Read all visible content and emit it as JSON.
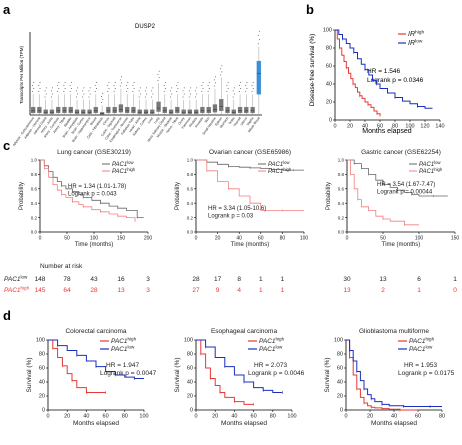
{
  "figure": {
    "colors": {
      "red": "#e53935",
      "blue": "#1a2fbf",
      "gray": "#555555",
      "lightred": "#f08080",
      "boxblue": "#3b8fd6"
    },
    "panel_a": {
      "letter": "a",
      "title": "DUSP2",
      "ylabel": "Transcripts Per Million (TPM)",
      "tissues": [
        "Adipose - Subcutaneous",
        "Adipose - Visceral",
        "Adrenal Gland",
        "Artery - Aorta",
        "Artery - Coronary",
        "Artery - Tibial",
        "Bladder",
        "Brain - Amygdala",
        "Brain - Cortex",
        "Brain - Hippocampus",
        "Breast",
        "Cells - Fibroblasts",
        "Cervix",
        "Colon - Sigmoid",
        "Colon - Transverse",
        "Esophagus - Mucosa",
        "Fallopian Tube",
        "Heart - Atrial",
        "Kidney - Cortex",
        "Liver",
        "Lung",
        "Minor Salivary Gland",
        "Muscle - Skeletal",
        "Nerve - Tibial",
        "Ovary",
        "Pancreas",
        "Pituitary",
        "Prostate",
        "Skin",
        "Small Intestine",
        "Spleen",
        "Stomach",
        "Testis",
        "Thyroid",
        "Uterus",
        "Vagina",
        "Whole Blood"
      ]
    },
    "panel_b": {
      "letter": "b",
      "ylabel": "Disease-free survival (%)",
      "xlabel": "Months elapsed",
      "xticks": [
        "0",
        "20",
        "40",
        "60",
        "80",
        "100",
        "120",
        "140"
      ],
      "yticks": [
        "0",
        "20",
        "40",
        "60",
        "80",
        "100"
      ],
      "legend": [
        {
          "label": "IR",
          "sup": "high",
          "color": "red"
        },
        {
          "label": "IR",
          "sup": "low",
          "color": "blue"
        }
      ],
      "hr": "HR = 1.546",
      "logrank": "Logrank p = 0.0346"
    },
    "panel_c": {
      "letter": "c",
      "ylabel": "Probability",
      "xlabel": "Time (months)",
      "risk_header": "Number at risk",
      "plots": [
        {
          "title": "Lung cancer (GSE30219)",
          "xticks": [
            "0",
            "50",
            "100",
            "150",
            "200"
          ],
          "legend": [
            {
              "label": "PAC1",
              "sup": "low"
            },
            {
              "label": "PAC1",
              "sup": "high"
            }
          ],
          "hr": "HR = 1.34 (1.01-1.78)",
          "logrank": "Logrank p = 0.043",
          "risk_low": [
            "148",
            "78",
            "43",
            "16",
            "3"
          ],
          "risk_high": [
            "145",
            "64",
            "28",
            "13",
            "3"
          ]
        },
        {
          "title": "Ovarian cancer (GSE65986)",
          "xticks": [
            "0",
            "20",
            "40",
            "60",
            "80",
            "100"
          ],
          "legend": [
            {
              "label": "PAC1",
              "sup": "low"
            },
            {
              "label": "PAC1",
              "sup": "high"
            }
          ],
          "hr": "HR = 3.34 (1.05-10.6)",
          "logrank": "Logrank p = 0.03",
          "risk_low": [
            "28",
            "17",
            "8",
            "1",
            "1"
          ],
          "risk_high": [
            "27",
            "9",
            "4",
            "1",
            "1"
          ]
        },
        {
          "title": "Gastric cancer (GSE62254)",
          "xticks": [
            "0",
            "50",
            "100",
            "150"
          ],
          "legend": [
            {
              "label": "PAC1",
              "sup": "low"
            },
            {
              "label": "PAC1",
              "sup": "high"
            }
          ],
          "hr": "HR = 3.54 (1.67-7.47)",
          "logrank": "Logrank p = 0.00044",
          "risk_low": [
            "30",
            "13",
            "6",
            "1"
          ],
          "risk_high": [
            "13",
            "2",
            "1",
            "0"
          ]
        }
      ],
      "row_low": {
        "label": "PAC1",
        "sup": "low"
      },
      "row_high": {
        "label": "PAC1",
        "sup": "high"
      }
    },
    "panel_d": {
      "letter": "d",
      "ylabel": "Survival (%)",
      "xlabel": "Months elapsed",
      "yticks": [
        "0",
        "20",
        "40",
        "60",
        "80",
        "100"
      ],
      "plots": [
        {
          "title": "Colorectal carcinoma",
          "xticks": [
            "0",
            "20",
            "40",
            "60",
            "80",
            "100"
          ],
          "legend": [
            {
              "label": "PAC1",
              "sup": "high",
              "color": "red"
            },
            {
              "label": "PAC1",
              "sup": "low",
              "color": "blue"
            }
          ],
          "hr": "HR = 1.947",
          "logrank": "Logrank p = 0.0047"
        },
        {
          "title": "Esophageal carcinoma",
          "xticks": [
            "0",
            "20",
            "40",
            "60",
            "80",
            "100"
          ],
          "legend": [
            {
              "label": "PAC1",
              "sup": "high",
              "color": "red"
            },
            {
              "label": "PAC1",
              "sup": "low",
              "color": "blue"
            }
          ],
          "hr": "HR = 2.073",
          "logrank": "Logrank p = 0.0046"
        },
        {
          "title": "Glioblastoma multiforme",
          "xticks": [
            "0",
            "20",
            "40",
            "60",
            "80"
          ],
          "legend": [
            {
              "label": "PAC1",
              "sup": "high",
              "color": "red"
            },
            {
              "label": "PAC1",
              "sup": "low",
              "color": "blue"
            }
          ],
          "hr": "HR = 1.953",
          "logrank": "Logrank p = 0.0175"
        }
      ]
    }
  },
  "chart_data": [
    {
      "type": "box",
      "title": "DUSP2",
      "ylabel": "Transcripts Per Million (TPM)",
      "categories": [
        "Adipose - Subcutaneous",
        "Adipose - Visceral",
        "Adrenal Gland",
        "Artery - Aorta",
        "Artery - Coronary",
        "Artery - Tibial",
        "Bladder",
        "Brain - Amygdala",
        "Brain - Cortex",
        "Brain - Hippocampus",
        "Breast",
        "Cells - Fibroblasts",
        "Cervix",
        "Colon - Sigmoid",
        "Colon - Transverse",
        "Esophagus - Mucosa",
        "Fallopian Tube",
        "Heart - Atrial",
        "Kidney - Cortex",
        "Liver",
        "Lung",
        "Minor Salivary Gland",
        "Muscle - Skeletal",
        "Nerve - Tibial",
        "Ovary",
        "Pancreas",
        "Pituitary",
        "Prostate",
        "Skin",
        "Small Intestine",
        "Spleen",
        "Stomach",
        "Testis",
        "Thyroid",
        "Uterus",
        "Vagina",
        "Whole Blood"
      ],
      "medians": [
        3,
        3,
        2,
        2,
        3,
        3,
        3,
        2,
        2,
        2,
        3,
        1,
        3,
        3,
        4,
        3,
        3,
        2,
        2,
        2,
        5,
        3,
        2,
        3,
        2,
        2,
        2,
        3,
        3,
        4,
        6,
        3,
        2,
        3,
        3,
        3,
        30
      ],
      "highlight": "Whole Blood"
    },
    {
      "type": "line",
      "step": true,
      "xlabel": "Months elapsed",
      "ylabel": "Disease-free survival (%)",
      "xlim": [
        0,
        140
      ],
      "ylim": [
        0,
        100
      ],
      "series": [
        {
          "name": "IR high",
          "color": "red",
          "x": [
            0,
            3,
            6,
            9,
            12,
            15,
            18,
            21,
            24,
            27,
            30,
            33,
            36,
            40,
            44,
            48,
            52,
            56,
            60
          ],
          "y": [
            100,
            90,
            80,
            72,
            65,
            58,
            52,
            46,
            40,
            36,
            31,
            27,
            24,
            20,
            17,
            14,
            10,
            7,
            4
          ]
        },
        {
          "name": "IR low",
          "color": "blue",
          "x": [
            0,
            5,
            10,
            15,
            20,
            25,
            30,
            35,
            40,
            45,
            50,
            55,
            60,
            70,
            80,
            90,
            100,
            110,
            120,
            130
          ],
          "y": [
            100,
            95,
            90,
            85,
            80,
            75,
            68,
            62,
            56,
            50,
            44,
            40,
            35,
            30,
            25,
            21,
            18,
            15,
            13,
            13
          ]
        }
      ]
    },
    {
      "type": "line",
      "step": true,
      "title": "Lung cancer (GSE30219)",
      "xlabel": "Time (months)",
      "ylabel": "Probability",
      "xlim": [
        0,
        250
      ],
      "ylim": [
        0,
        1
      ],
      "series": [
        {
          "name": "PAC1 low",
          "color": "gray",
          "x": [
            0,
            10,
            20,
            30,
            40,
            50,
            60,
            75,
            90,
            100,
            120,
            140,
            160,
            180,
            200,
            225,
            240
          ],
          "y": [
            1,
            0.92,
            0.84,
            0.76,
            0.7,
            0.64,
            0.6,
            0.56,
            0.52,
            0.48,
            0.44,
            0.4,
            0.36,
            0.33,
            0.3,
            0.2,
            0.2
          ]
        },
        {
          "name": "PAC1 high",
          "color": "red",
          "x": [
            0,
            10,
            20,
            30,
            40,
            50,
            60,
            75,
            90,
            100,
            120,
            140,
            160,
            180,
            200,
            220
          ],
          "y": [
            1,
            0.88,
            0.76,
            0.66,
            0.58,
            0.52,
            0.48,
            0.42,
            0.38,
            0.35,
            0.31,
            0.28,
            0.25,
            0.22,
            0.2,
            0.15
          ]
        }
      ]
    },
    {
      "type": "line",
      "step": true,
      "title": "Ovarian cancer (GSE65986)",
      "xlabel": "Time (months)",
      "ylabel": "Probability",
      "xlim": [
        0,
        100
      ],
      "ylim": [
        0,
        1
      ],
      "series": [
        {
          "name": "PAC1 low",
          "color": "gray",
          "x": [
            0,
            10,
            20,
            30,
            40,
            50,
            60,
            70,
            80,
            90,
            100
          ],
          "y": [
            1,
            0.97,
            0.94,
            0.91,
            0.9,
            0.89,
            0.88,
            0.87,
            0.86,
            0.86,
            0.86
          ]
        },
        {
          "name": "PAC1 high",
          "color": "red",
          "x": [
            0,
            10,
            20,
            30,
            40,
            50,
            60,
            80,
            100
          ],
          "y": [
            1,
            0.85,
            0.7,
            0.6,
            0.5,
            0.4,
            0.3,
            0.3,
            0.3
          ]
        }
      ]
    },
    {
      "type": "line",
      "step": true,
      "title": "Gastric cancer (GSE62254)",
      "xlabel": "Time (months)",
      "ylabel": "Probability",
      "xlim": [
        0,
        150
      ],
      "ylim": [
        0,
        1
      ],
      "series": [
        {
          "name": "PAC1 low",
          "color": "gray",
          "x": [
            0,
            10,
            20,
            30,
            40,
            50,
            60,
            70,
            80,
            90,
            100,
            120,
            140
          ],
          "y": [
            1,
            0.95,
            0.88,
            0.8,
            0.72,
            0.66,
            0.62,
            0.58,
            0.55,
            0.52,
            0.5,
            0.5,
            0.5
          ]
        },
        {
          "name": "PAC1 high",
          "color": "red",
          "x": [
            0,
            5,
            10,
            15,
            20,
            30,
            40,
            50,
            60,
            80,
            100
          ],
          "y": [
            1,
            0.8,
            0.6,
            0.45,
            0.35,
            0.3,
            0.22,
            0.18,
            0.15,
            0.1,
            0.1
          ]
        }
      ]
    },
    {
      "type": "line",
      "step": true,
      "title": "Colorectal carcinoma",
      "xlabel": "Months elapsed",
      "ylabel": "Survival (%)",
      "xlim": [
        0,
        100
      ],
      "ylim": [
        0,
        100
      ],
      "series": [
        {
          "name": "PAC1 high",
          "color": "red",
          "x": [
            0,
            5,
            10,
            15,
            20,
            25,
            30,
            40,
            50,
            60
          ],
          "y": [
            100,
            88,
            75,
            63,
            52,
            42,
            32,
            25,
            25,
            25
          ]
        },
        {
          "name": "PAC1 low",
          "color": "blue",
          "x": [
            0,
            10,
            20,
            30,
            40,
            50,
            60,
            70,
            80,
            90,
            100
          ],
          "y": [
            100,
            92,
            85,
            78,
            70,
            62,
            55,
            50,
            47,
            45,
            45
          ]
        }
      ]
    },
    {
      "type": "line",
      "step": true,
      "title": "Esophageal carcinoma",
      "xlabel": "Months elapsed",
      "ylabel": "Survival (%)",
      "xlim": [
        0,
        100
      ],
      "ylim": [
        0,
        100
      ],
      "series": [
        {
          "name": "PAC1 high",
          "color": "red",
          "x": [
            0,
            5,
            10,
            15,
            20,
            25,
            30,
            40,
            50,
            60
          ],
          "y": [
            100,
            80,
            60,
            45,
            35,
            25,
            18,
            12,
            8,
            8
          ]
        },
        {
          "name": "PAC1 low",
          "color": "blue",
          "x": [
            0,
            10,
            20,
            30,
            40,
            50,
            60,
            70,
            80,
            90
          ],
          "y": [
            100,
            90,
            75,
            62,
            50,
            40,
            32,
            28,
            25,
            25
          ]
        }
      ]
    },
    {
      "type": "line",
      "step": true,
      "title": "Glioblastoma multiforme",
      "xlabel": "Months elapsed",
      "ylabel": "Survival (%)",
      "xlim": [
        0,
        80
      ],
      "ylim": [
        0,
        100
      ],
      "series": [
        {
          "name": "PAC1 high",
          "color": "red",
          "x": [
            0,
            3,
            6,
            9,
            12,
            15,
            18,
            21,
            24,
            30,
            36,
            45,
            60
          ],
          "y": [
            100,
            75,
            50,
            30,
            18,
            10,
            6,
            4,
            3,
            2,
            1,
            0,
            0
          ]
        },
        {
          "name": "PAC1 low",
          "color": "blue",
          "x": [
            0,
            3,
            6,
            9,
            12,
            15,
            18,
            21,
            24,
            30,
            36,
            48,
            60,
            70,
            80
          ],
          "y": [
            100,
            85,
            70,
            55,
            42,
            30,
            22,
            16,
            12,
            8,
            6,
            5,
            5,
            5,
            5
          ]
        }
      ]
    }
  ]
}
